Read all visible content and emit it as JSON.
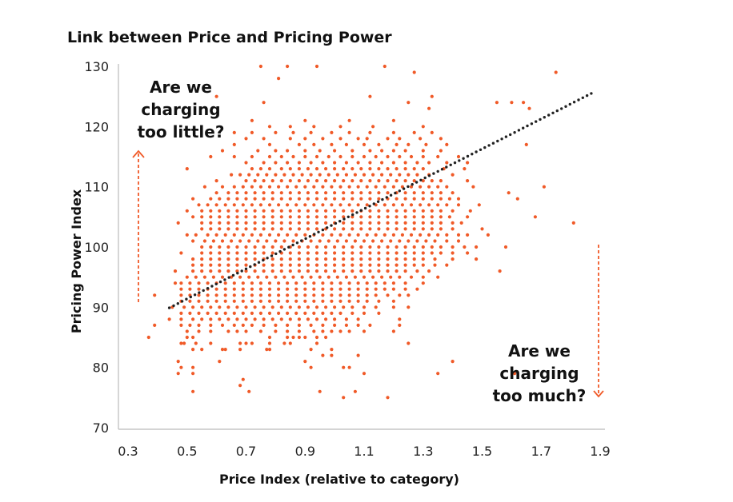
{
  "chart_data": {
    "type": "scatter",
    "title": "Link between Price and Pricing Power",
    "xlabel": "Price Index (relative to category)",
    "ylabel": "Pricing Power Index",
    "xlim": [
      0.3,
      1.9
    ],
    "ylim": [
      70,
      130
    ],
    "xticks": [
      "0.3",
      "0.5",
      "0.7",
      "0.9",
      "1.1",
      "1.3",
      "1.5",
      "1.7",
      "1.9"
    ],
    "yticks": [
      "70",
      "80",
      "90",
      "100",
      "110",
      "120",
      "130"
    ],
    "grid": false,
    "legend": "none",
    "colors": {
      "points": "#f05a28",
      "trendline": "#222222",
      "axis": "#bbbbbb",
      "arrows": "#f05a28"
    },
    "trendline": {
      "style": "dotted",
      "x": [
        0.44,
        1.87
      ],
      "y": [
        89.9,
        125.5
      ]
    },
    "annotations": {
      "top_left": [
        "Are we",
        "charging",
        "too little?"
      ],
      "bottom_right": [
        "Are we",
        "charging",
        "too much?"
      ]
    },
    "rows": [
      {
        "y": 119,
        "x": [
          0.66,
          0.72,
          0.8,
          0.86,
          0.92,
          0.99,
          1.05,
          1.12,
          1.2,
          1.27,
          1.33
        ]
      },
      {
        "y": 118,
        "x": [
          0.7,
          0.76,
          0.85,
          0.9,
          0.96,
          1.02,
          1.08,
          1.11,
          1.18,
          1.22,
          1.29,
          1.36
        ]
      },
      {
        "y": 117,
        "x": [
          0.66,
          0.78,
          0.88,
          0.93,
          0.99,
          1.04,
          1.1,
          1.15,
          1.21,
          1.25,
          1.31,
          1.38,
          1.65
        ]
      },
      {
        "y": 116,
        "x": [
          0.62,
          0.74,
          0.8,
          0.84,
          0.9,
          0.95,
          1.0,
          1.06,
          1.12,
          1.16,
          1.2,
          1.24,
          1.3,
          1.36
        ]
      },
      {
        "y": 115,
        "x": [
          0.58,
          0.66,
          0.72,
          0.78,
          0.82,
          0.86,
          0.9,
          0.94,
          0.98,
          1.02,
          1.06,
          1.1,
          1.14,
          1.18,
          1.22,
          1.26,
          1.3,
          1.35,
          1.42
        ]
      },
      {
        "y": 114,
        "x": [
          0.7,
          0.76,
          0.8,
          0.84,
          0.88,
          0.92,
          0.96,
          1.0,
          1.04,
          1.08,
          1.12,
          1.16,
          1.2,
          1.24,
          1.28,
          1.32,
          1.38,
          1.45
        ]
      },
      {
        "y": 113,
        "x": [
          0.5,
          0.72,
          0.75,
          0.78,
          0.82,
          0.85,
          0.88,
          0.91,
          0.94,
          0.97,
          1.0,
          1.03,
          1.06,
          1.09,
          1.12,
          1.15,
          1.18,
          1.21,
          1.24,
          1.27,
          1.3,
          1.37,
          1.44
        ]
      },
      {
        "y": 112,
        "x": [
          0.65,
          0.68,
          0.71,
          0.74,
          0.77,
          0.8,
          0.83,
          0.86,
          0.89,
          0.92,
          0.95,
          0.98,
          1.01,
          1.04,
          1.07,
          1.1,
          1.13,
          1.16,
          1.19,
          1.22,
          1.25,
          1.28,
          1.32,
          1.4
        ]
      },
      {
        "y": 111,
        "x": [
          0.6,
          0.7,
          0.73,
          0.76,
          0.79,
          0.82,
          0.85,
          0.88,
          0.91,
          0.94,
          0.97,
          1.0,
          1.03,
          1.06,
          1.09,
          1.12,
          1.15,
          1.18,
          1.21,
          1.24,
          1.27,
          1.3,
          1.33,
          1.36,
          1.45
        ]
      },
      {
        "y": 110,
        "x": [
          0.56,
          0.62,
          0.66,
          0.69,
          0.72,
          0.75,
          0.78,
          0.81,
          0.84,
          0.87,
          0.9,
          0.93,
          0.96,
          0.99,
          1.02,
          1.05,
          1.08,
          1.11,
          1.14,
          1.17,
          1.2,
          1.23,
          1.26,
          1.29,
          1.32,
          1.35,
          1.38,
          1.47,
          1.71
        ]
      },
      {
        "y": 109,
        "x": [
          0.6,
          0.64,
          0.67,
          0.7,
          0.73,
          0.76,
          0.79,
          0.82,
          0.85,
          0.88,
          0.91,
          0.94,
          0.97,
          1.0,
          1.03,
          1.06,
          1.09,
          1.12,
          1.15,
          1.18,
          1.21,
          1.24,
          1.27,
          1.3,
          1.33,
          1.36,
          1.4,
          1.59
        ]
      },
      {
        "y": 108,
        "x": [
          0.52,
          0.58,
          0.61,
          0.64,
          0.67,
          0.7,
          0.73,
          0.76,
          0.79,
          0.82,
          0.85,
          0.88,
          0.91,
          0.94,
          0.97,
          1.0,
          1.03,
          1.06,
          1.09,
          1.12,
          1.15,
          1.18,
          1.21,
          1.24,
          1.27,
          1.3,
          1.33,
          1.36,
          1.39,
          1.42,
          1.62
        ]
      },
      {
        "y": 107,
        "x": [
          0.54,
          0.57,
          0.6,
          0.63,
          0.66,
          0.69,
          0.72,
          0.75,
          0.78,
          0.81,
          0.84,
          0.87,
          0.9,
          0.93,
          0.96,
          0.99,
          1.02,
          1.05,
          1.08,
          1.11,
          1.14,
          1.17,
          1.2,
          1.23,
          1.26,
          1.29,
          1.32,
          1.35,
          1.38,
          1.42,
          1.49
        ]
      },
      {
        "y": 106,
        "x": [
          0.5,
          0.55,
          0.58,
          0.61,
          0.64,
          0.67,
          0.7,
          0.73,
          0.76,
          0.79,
          0.82,
          0.85,
          0.88,
          0.91,
          0.94,
          0.97,
          1.0,
          1.03,
          1.06,
          1.09,
          1.12,
          1.15,
          1.18,
          1.21,
          1.24,
          1.27,
          1.3,
          1.33,
          1.36,
          1.4,
          1.46
        ]
      },
      {
        "y": 105,
        "x": [
          0.52,
          0.55,
          0.58,
          0.61,
          0.64,
          0.67,
          0.7,
          0.73,
          0.76,
          0.79,
          0.82,
          0.85,
          0.88,
          0.91,
          0.94,
          0.97,
          1.0,
          1.03,
          1.06,
          1.09,
          1.12,
          1.15,
          1.18,
          1.21,
          1.24,
          1.27,
          1.3,
          1.33,
          1.36,
          1.39,
          1.45,
          1.68
        ]
      },
      {
        "y": 104,
        "x": [
          0.47,
          0.55,
          0.58,
          0.61,
          0.64,
          0.67,
          0.7,
          0.73,
          0.76,
          0.79,
          0.82,
          0.85,
          0.88,
          0.91,
          0.94,
          0.97,
          1.0,
          1.03,
          1.06,
          1.09,
          1.12,
          1.15,
          1.18,
          1.21,
          1.24,
          1.27,
          1.3,
          1.33,
          1.36,
          1.4,
          1.43,
          1.81
        ]
      },
      {
        "y": 103,
        "x": [
          0.55,
          0.58,
          0.61,
          0.64,
          0.67,
          0.7,
          0.73,
          0.76,
          0.79,
          0.82,
          0.85,
          0.88,
          0.91,
          0.94,
          0.97,
          1.0,
          1.03,
          1.06,
          1.09,
          1.12,
          1.15,
          1.18,
          1.21,
          1.24,
          1.27,
          1.3,
          1.33,
          1.36,
          1.4,
          1.5
        ]
      },
      {
        "y": 102,
        "x": [
          0.5,
          0.53,
          0.57,
          0.6,
          0.63,
          0.66,
          0.69,
          0.72,
          0.75,
          0.78,
          0.81,
          0.84,
          0.87,
          0.9,
          0.93,
          0.96,
          0.99,
          1.02,
          1.05,
          1.08,
          1.11,
          1.14,
          1.17,
          1.2,
          1.23,
          1.26,
          1.29,
          1.32,
          1.35,
          1.38,
          1.42,
          1.45,
          1.52
        ]
      },
      {
        "y": 101,
        "x": [
          0.52,
          0.56,
          0.59,
          0.62,
          0.65,
          0.68,
          0.71,
          0.74,
          0.77,
          0.8,
          0.83,
          0.86,
          0.89,
          0.92,
          0.95,
          0.98,
          1.01,
          1.04,
          1.07,
          1.1,
          1.13,
          1.16,
          1.19,
          1.22,
          1.25,
          1.28,
          1.31,
          1.34,
          1.38,
          1.42
        ]
      },
      {
        "y": 100,
        "x": [
          0.55,
          0.58,
          0.61,
          0.64,
          0.67,
          0.7,
          0.73,
          0.76,
          0.79,
          0.82,
          0.85,
          0.88,
          0.91,
          0.94,
          0.97,
          1.0,
          1.03,
          1.06,
          1.09,
          1.12,
          1.15,
          1.18,
          1.21,
          1.24,
          1.27,
          1.3,
          1.33,
          1.36,
          1.4,
          1.44,
          1.48,
          1.58
        ]
      },
      {
        "y": 99,
        "x": [
          0.48,
          0.55,
          0.58,
          0.61,
          0.64,
          0.67,
          0.7,
          0.73,
          0.76,
          0.79,
          0.82,
          0.85,
          0.88,
          0.91,
          0.94,
          0.97,
          1.0,
          1.03,
          1.06,
          1.09,
          1.12,
          1.15,
          1.18,
          1.21,
          1.24,
          1.27,
          1.3,
          1.33,
          1.36,
          1.4,
          1.45
        ]
      },
      {
        "y": 98,
        "x": [
          0.52,
          0.55,
          0.58,
          0.61,
          0.64,
          0.67,
          0.7,
          0.73,
          0.76,
          0.79,
          0.82,
          0.85,
          0.88,
          0.91,
          0.94,
          0.97,
          1.0,
          1.03,
          1.06,
          1.09,
          1.12,
          1.15,
          1.18,
          1.21,
          1.24,
          1.27,
          1.3,
          1.34,
          1.4,
          1.48
        ]
      },
      {
        "y": 97,
        "x": [
          0.52,
          0.55,
          0.58,
          0.61,
          0.64,
          0.67,
          0.7,
          0.73,
          0.76,
          0.79,
          0.82,
          0.85,
          0.88,
          0.91,
          0.94,
          0.97,
          1.0,
          1.03,
          1.06,
          1.09,
          1.12,
          1.15,
          1.18,
          1.21,
          1.24,
          1.27,
          1.3,
          1.34,
          1.38
        ]
      },
      {
        "y": 96,
        "x": [
          0.46,
          0.52,
          0.55,
          0.58,
          0.61,
          0.64,
          0.67,
          0.7,
          0.73,
          0.76,
          0.79,
          0.82,
          0.85,
          0.88,
          0.91,
          0.94,
          0.97,
          1.0,
          1.03,
          1.06,
          1.09,
          1.12,
          1.15,
          1.18,
          1.21,
          1.24,
          1.28,
          1.32,
          1.56
        ]
      },
      {
        "y": 95,
        "x": [
          0.5,
          0.53,
          0.56,
          0.59,
          0.62,
          0.65,
          0.68,
          0.71,
          0.74,
          0.77,
          0.8,
          0.83,
          0.86,
          0.89,
          0.92,
          0.95,
          0.98,
          1.01,
          1.04,
          1.07,
          1.1,
          1.13,
          1.16,
          1.19,
          1.22,
          1.26,
          1.3,
          1.35
        ]
      },
      {
        "y": 94,
        "x": [
          0.46,
          0.48,
          0.51,
          0.54,
          0.57,
          0.6,
          0.63,
          0.66,
          0.69,
          0.72,
          0.75,
          0.78,
          0.81,
          0.84,
          0.87,
          0.9,
          0.93,
          0.96,
          0.99,
          1.02,
          1.05,
          1.08,
          1.11,
          1.14,
          1.17,
          1.2,
          1.24,
          1.3
        ]
      },
      {
        "y": 93,
        "x": [
          0.48,
          0.51,
          0.54,
          0.57,
          0.6,
          0.63,
          0.66,
          0.69,
          0.72,
          0.75,
          0.78,
          0.81,
          0.84,
          0.87,
          0.9,
          0.93,
          0.96,
          0.99,
          1.02,
          1.05,
          1.08,
          1.11,
          1.14,
          1.17,
          1.2,
          1.24,
          1.28
        ]
      },
      {
        "y": 92,
        "x": [
          0.39,
          0.48,
          0.51,
          0.54,
          0.57,
          0.6,
          0.63,
          0.66,
          0.69,
          0.72,
          0.75,
          0.78,
          0.81,
          0.84,
          0.87,
          0.9,
          0.93,
          0.96,
          0.99,
          1.02,
          1.05,
          1.08,
          1.11,
          1.14,
          1.18,
          1.22,
          1.25
        ]
      },
      {
        "y": 91,
        "x": [
          0.48,
          0.51,
          0.54,
          0.57,
          0.6,
          0.63,
          0.66,
          0.69,
          0.72,
          0.75,
          0.78,
          0.81,
          0.84,
          0.87,
          0.9,
          0.93,
          0.96,
          0.99,
          1.02,
          1.05,
          1.08,
          1.11,
          1.15,
          1.2
        ]
      },
      {
        "y": 90,
        "x": [
          0.45,
          0.49,
          0.52,
          0.55,
          0.58,
          0.61,
          0.64,
          0.67,
          0.7,
          0.73,
          0.76,
          0.79,
          0.82,
          0.85,
          0.88,
          0.91,
          0.94,
          0.97,
          1.0,
          1.03,
          1.06,
          1.1,
          1.14,
          1.2,
          1.25
        ]
      },
      {
        "y": 89,
        "x": [
          0.48,
          0.51,
          0.54,
          0.57,
          0.6,
          0.63,
          0.66,
          0.69,
          0.72,
          0.75,
          0.78,
          0.81,
          0.84,
          0.87,
          0.9,
          0.93,
          0.96,
          0.99,
          1.02,
          1.06,
          1.1,
          1.15
        ]
      },
      {
        "y": 88,
        "x": [
          0.44,
          0.48,
          0.52,
          0.55,
          0.58,
          0.61,
          0.64,
          0.67,
          0.7,
          0.73,
          0.76,
          0.79,
          0.82,
          0.85,
          0.88,
          0.91,
          0.94,
          0.97,
          1.0,
          1.04,
          1.08,
          1.22
        ]
      },
      {
        "y": 87,
        "x": [
          0.39,
          0.48,
          0.51,
          0.54,
          0.58,
          0.62,
          0.66,
          0.69,
          0.72,
          0.76,
          0.8,
          0.84,
          0.88,
          0.92,
          0.96,
          1.0,
          1.04,
          1.08,
          1.12,
          1.22
        ]
      },
      {
        "y": 86,
        "x": [
          0.5,
          0.54,
          0.58,
          0.64,
          0.67,
          0.7,
          0.75,
          0.8,
          0.84,
          0.88,
          0.93,
          0.96,
          0.99,
          1.02,
          1.05,
          1.1,
          1.2
        ]
      },
      {
        "y": 85,
        "x": [
          0.37,
          0.5,
          0.52,
          0.78,
          0.84,
          0.86,
          0.88,
          0.9,
          0.94,
          0.97
        ]
      },
      {
        "y": 84,
        "x": [
          0.48,
          0.49,
          0.53,
          0.58,
          0.68,
          0.7,
          0.72,
          0.78,
          0.83,
          0.85,
          0.94,
          1.25
        ]
      },
      {
        "y": 83,
        "x": [
          0.52,
          0.55,
          0.62,
          0.63,
          0.68,
          0.77,
          0.78,
          0.92,
          0.99
        ]
      },
      {
        "y": 82,
        "x": [
          0.96,
          0.99,
          1.08
        ]
      },
      {
        "y": 81,
        "x": [
          0.47,
          0.61,
          0.9,
          1.4
        ]
      },
      {
        "y": 80,
        "x": [
          0.48,
          0.52,
          0.92,
          1.03,
          1.05
        ]
      },
      {
        "y": 79,
        "x": [
          0.47,
          0.52,
          1.1,
          1.35,
          1.61
        ]
      },
      {
        "y": 78,
        "x": [
          0.69
        ]
      },
      {
        "y": 77,
        "x": [
          0.68
        ]
      },
      {
        "y": 76,
        "x": [
          0.52,
          0.71,
          0.95,
          1.07
        ]
      },
      {
        "y": 75,
        "x": [
          1.03,
          1.18
        ]
      },
      {
        "y": 130,
        "x": [
          0.75,
          0.84,
          0.94,
          1.17
        ]
      },
      {
        "y": 129,
        "x": [
          1.27,
          1.75
        ]
      },
      {
        "y": 128,
        "x": [
          0.81
        ]
      },
      {
        "y": 125,
        "x": [
          0.6,
          1.12,
          1.33
        ]
      },
      {
        "y": 124,
        "x": [
          0.76,
          1.25,
          1.55,
          1.6,
          1.64
        ]
      },
      {
        "y": 123,
        "x": [
          1.32,
          1.66
        ]
      },
      {
        "y": 121,
        "x": [
          0.72,
          0.9,
          1.05,
          1.2
        ]
      },
      {
        "y": 120,
        "x": [
          0.78,
          0.85,
          0.93,
          1.02,
          1.13,
          1.3
        ]
      }
    ]
  }
}
